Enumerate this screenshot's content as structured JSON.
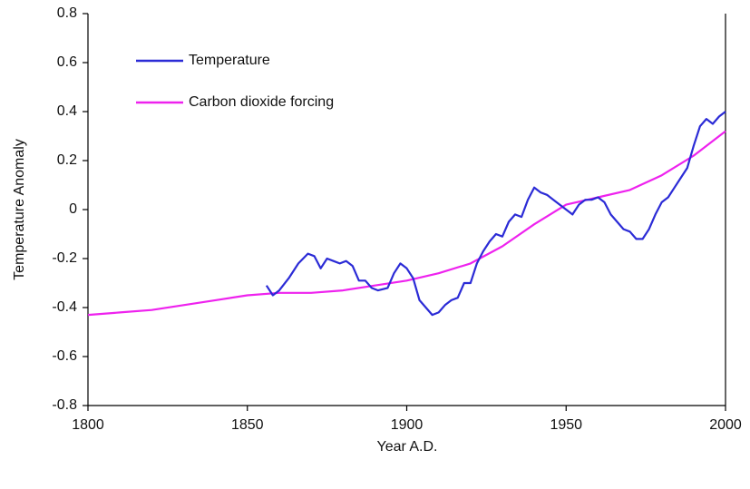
{
  "chart_data": {
    "type": "line",
    "xlabel": "Year A.D.",
    "ylabel": "Temperature Anomaly",
    "legend": "upper left",
    "xlim": [
      1800,
      2000
    ],
    "xticks": [
      1800,
      1850,
      1900,
      1950,
      2000
    ],
    "ylim": [
      -0.8,
      0.8
    ],
    "yticks": [
      0.8,
      0.6,
      0.4,
      0.2,
      0,
      -0.2,
      -0.4,
      -0.6,
      -0.8
    ],
    "series": [
      {
        "name": "Temperature",
        "color": "#2b2bd6",
        "x": [
          1856,
          1858,
          1860,
          1863,
          1866,
          1869,
          1871,
          1873,
          1875,
          1877,
          1879,
          1881,
          1883,
          1885,
          1887,
          1889,
          1891,
          1894,
          1896,
          1898,
          1900,
          1902,
          1904,
          1906,
          1908,
          1910,
          1912,
          1914,
          1916,
          1918,
          1920,
          1922,
          1924,
          1926,
          1928,
          1930,
          1932,
          1934,
          1936,
          1938,
          1940,
          1942,
          1944,
          1946,
          1948,
          1950,
          1952,
          1954,
          1956,
          1958,
          1960,
          1962,
          1964,
          1966,
          1968,
          1970,
          1972,
          1974,
          1976,
          1978,
          1980,
          1982,
          1984,
          1986,
          1988,
          1990,
          1992,
          1994,
          1996,
          1998,
          2000
        ],
        "values": [
          -0.31,
          -0.35,
          -0.33,
          -0.28,
          -0.22,
          -0.18,
          -0.19,
          -0.24,
          -0.2,
          -0.21,
          -0.22,
          -0.21,
          -0.23,
          -0.29,
          -0.29,
          -0.32,
          -0.33,
          -0.32,
          -0.26,
          -0.22,
          -0.24,
          -0.28,
          -0.37,
          -0.4,
          -0.43,
          -0.42,
          -0.39,
          -0.37,
          -0.36,
          -0.3,
          -0.3,
          -0.22,
          -0.17,
          -0.13,
          -0.1,
          -0.11,
          -0.05,
          -0.02,
          -0.03,
          0.04,
          0.09,
          0.07,
          0.06,
          0.04,
          0.02,
          0,
          -0.02,
          0.02,
          0.04,
          0.04,
          0.05,
          0.03,
          -0.02,
          -0.05,
          -0.08,
          -0.09,
          -0.12,
          -0.12,
          -0.08,
          -0.02,
          0.03,
          0.05,
          0.09,
          0.13,
          0.17,
          0.26,
          0.34,
          0.37,
          0.35,
          0.38,
          0.4
        ]
      },
      {
        "name": "Carbon dioxide forcing",
        "color": "#ee22ee",
        "x": [
          1800,
          1810,
          1820,
          1830,
          1840,
          1850,
          1860,
          1870,
          1880,
          1890,
          1900,
          1910,
          1920,
          1930,
          1940,
          1950,
          1960,
          1970,
          1980,
          1990,
          2000
        ],
        "values": [
          -0.43,
          -0.42,
          -0.41,
          -0.39,
          -0.37,
          -0.35,
          -0.34,
          -0.34,
          -0.33,
          -0.31,
          -0.29,
          -0.26,
          -0.22,
          -0.15,
          -0.06,
          0.02,
          0.05,
          0.08,
          0.14,
          0.22,
          0.32
        ]
      }
    ]
  }
}
